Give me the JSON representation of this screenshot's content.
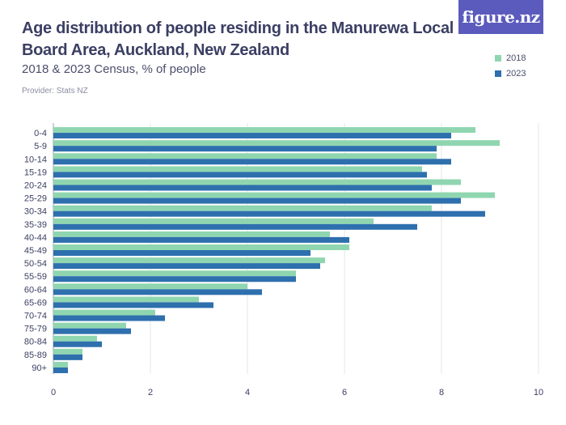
{
  "header": {
    "title": "Age distribution of people residing in the Manurewa Local Board Area, Auckland, New Zealand",
    "subtitle": "2018 & 2023 Census, % of people",
    "provider": "Provider: Stats NZ"
  },
  "brand": {
    "logo_text": "figure.nz",
    "color": "#5b5bbd"
  },
  "legend": [
    {
      "label": "2018",
      "color": "#8fd6b0"
    },
    {
      "label": "2023",
      "color": "#2e6fae"
    }
  ],
  "chart_data": {
    "type": "bar",
    "orientation": "horizontal",
    "categories": [
      "0-4",
      "5-9",
      "10-14",
      "15-19",
      "20-24",
      "25-29",
      "30-34",
      "35-39",
      "40-44",
      "45-49",
      "50-54",
      "55-59",
      "60-64",
      "65-69",
      "70-74",
      "75-79",
      "80-84",
      "85-89",
      "90+"
    ],
    "series": [
      {
        "name": "2018",
        "color": "#8fd6b0",
        "values": [
          8.7,
          9.2,
          7.9,
          7.6,
          8.4,
          9.1,
          7.8,
          6.6,
          5.7,
          6.1,
          5.6,
          5.0,
          4.0,
          3.0,
          2.1,
          1.5,
          0.9,
          0.6,
          0.3
        ]
      },
      {
        "name": "2023",
        "color": "#2e6fae",
        "values": [
          8.2,
          7.9,
          8.2,
          7.7,
          7.8,
          8.4,
          8.9,
          7.5,
          6.1,
          5.3,
          5.5,
          5.0,
          4.3,
          3.3,
          2.3,
          1.6,
          1.0,
          0.6,
          0.3
        ]
      }
    ],
    "xlim": [
      0,
      10
    ],
    "xticks": [
      0,
      2,
      4,
      6,
      8,
      10
    ],
    "grid": true,
    "legend_position": "top-right"
  }
}
